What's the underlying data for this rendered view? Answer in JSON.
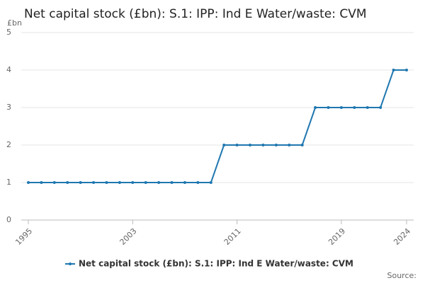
{
  "chart_data": {
    "type": "line",
    "title": "Net capital stock (£bn): S.1: IPP: Ind E Water/waste: CVM",
    "y_label": "£bn",
    "source": "Source:",
    "x": [
      1995,
      1996,
      1997,
      1998,
      1999,
      2000,
      2001,
      2002,
      2003,
      2004,
      2005,
      2006,
      2007,
      2008,
      2009,
      2010,
      2011,
      2012,
      2013,
      2014,
      2015,
      2016,
      2017,
      2018,
      2019,
      2020,
      2021,
      2022,
      2023,
      2024
    ],
    "series": [
      {
        "name": "Net capital stock (£bn): S.1: IPP: Ind E Water/waste: CVM",
        "color": "#1f77b0",
        "values": [
          1,
          1,
          1,
          1,
          1,
          1,
          1,
          1,
          1,
          1,
          1,
          1,
          1,
          1,
          1,
          2,
          2,
          2,
          2,
          2,
          2,
          2,
          3,
          3,
          3,
          3,
          3,
          3,
          4,
          4
        ]
      }
    ],
    "xlim": [
      1995,
      2024
    ],
    "xticks": [
      1995,
      2003,
      2011,
      2019,
      2024
    ],
    "ylim": [
      0,
      5
    ],
    "yticks": [
      0,
      1,
      2,
      3,
      4,
      5
    ],
    "grid": true
  }
}
